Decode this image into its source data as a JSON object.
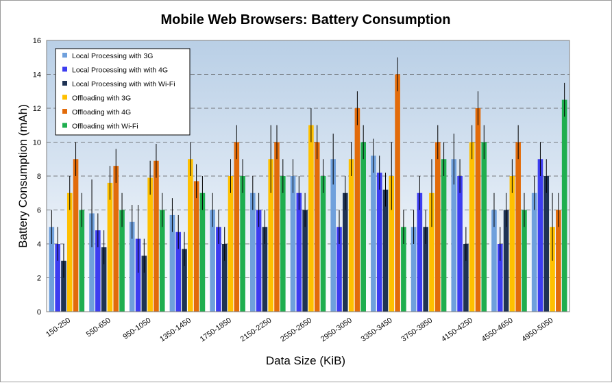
{
  "chart_data": {
    "type": "bar",
    "title": "Mobile Web Browsers: Battery Consumption",
    "xlabel": "Data Size (KiB)",
    "ylabel": "Battery Consumption (mAh)",
    "ylim": [
      0,
      16
    ],
    "yticks": [
      0,
      2,
      4,
      6,
      8,
      10,
      12,
      14,
      16
    ],
    "grid": true,
    "legend_position": "top-left",
    "error_bars": true,
    "categories": [
      "150-250",
      "550-650",
      "950-1050",
      "1350-1450",
      "1750-1850",
      "2150-2250",
      "2550-2650",
      "2950-3050",
      "3350-3450",
      "3750-3850",
      "4150-4250",
      "4550-4650",
      "4950-5050"
    ],
    "series": [
      {
        "name": "Local Processing with 3G",
        "color": "#6fa0dc",
        "values": [
          5,
          5.8,
          5.3,
          5.7,
          6,
          7,
          8,
          9,
          9.2,
          5,
          9,
          6,
          7
        ],
        "errors": [
          1,
          2,
          1,
          1,
          1,
          1,
          1,
          1.5,
          1,
          1,
          1.5,
          1,
          1
        ]
      },
      {
        "name": "Local Processing with with 4G",
        "color": "#3d3df0",
        "values": [
          4,
          4.8,
          4.3,
          4.7,
          5,
          6,
          7,
          5,
          8.2,
          7,
          8,
          4,
          9
        ],
        "errors": [
          1,
          1,
          2,
          1,
          1,
          1,
          1,
          1,
          1,
          1,
          1,
          1,
          1
        ]
      },
      {
        "name": "Local Processing with with Wi-Fi",
        "color": "#1f3354",
        "values": [
          3,
          3.8,
          3.3,
          3.7,
          4,
          5,
          6,
          7,
          7.2,
          5,
          4,
          6,
          8
        ],
        "errors": [
          1,
          1,
          1,
          1,
          1,
          1,
          1,
          1,
          1,
          1,
          1,
          1,
          1
        ]
      },
      {
        "name": "Offloading with 3G",
        "color": "#ffc000",
        "values": [
          7,
          7.6,
          7.9,
          9,
          8,
          9,
          11,
          9,
          8,
          7,
          10,
          8,
          5
        ],
        "errors": [
          1,
          1,
          1,
          1,
          1,
          2,
          1,
          1,
          2,
          2,
          1,
          1,
          2
        ]
      },
      {
        "name": "Offloading with 4G",
        "color": "#e26b0a",
        "values": [
          9,
          8.6,
          8.9,
          7.7,
          10,
          10,
          10,
          12,
          14,
          10,
          12,
          10,
          6
        ],
        "errors": [
          1,
          1,
          1,
          1,
          1,
          1,
          1,
          1,
          1,
          1,
          1,
          1,
          1
        ]
      },
      {
        "name": "Offloading with Wi-Fi",
        "color": "#1fae4f",
        "values": [
          6,
          6,
          6,
          7,
          8,
          8,
          8,
          10,
          5,
          9,
          10,
          6,
          12.5
        ],
        "errors": [
          1,
          1,
          1,
          1,
          1,
          1,
          1,
          1,
          1,
          1,
          1,
          1,
          1
        ]
      }
    ]
  }
}
